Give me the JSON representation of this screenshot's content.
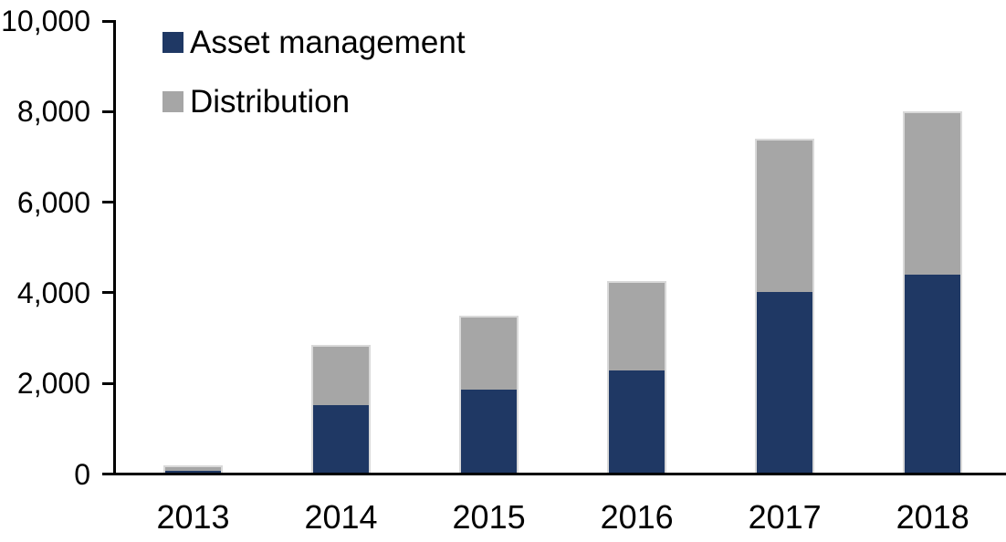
{
  "chart_data": {
    "type": "bar",
    "stacked": true,
    "title": "",
    "xlabel": "",
    "ylabel": "",
    "categories": [
      "2013",
      "2014",
      "2015",
      "2016",
      "2017",
      "2018"
    ],
    "series": [
      {
        "name": "Asset management",
        "color": "#1F3864",
        "values": [
          90,
          1545,
          1890,
          2310,
          4050,
          4420
        ]
      },
      {
        "name": "Distribution",
        "color": "#A6A6A6",
        "values": [
          110,
          1305,
          1610,
          1940,
          3350,
          3580
        ]
      }
    ],
    "ylim": [
      0,
      10000
    ],
    "y_ticks": [
      {
        "value": 0,
        "label": "0"
      },
      {
        "value": 2000,
        "label": "2,000"
      },
      {
        "value": 4000,
        "label": "4,000"
      },
      {
        "value": 6000,
        "label": "6,000"
      },
      {
        "value": 8000,
        "label": "8,000"
      },
      {
        "value": 10000,
        "label": "10,000"
      }
    ],
    "grid": false,
    "legend_position": "inside-top-left"
  },
  "colors": {
    "axis": "#000000",
    "background": "#FFFFFF",
    "bar_border": "#D9D9D9",
    "text": "#000000"
  }
}
